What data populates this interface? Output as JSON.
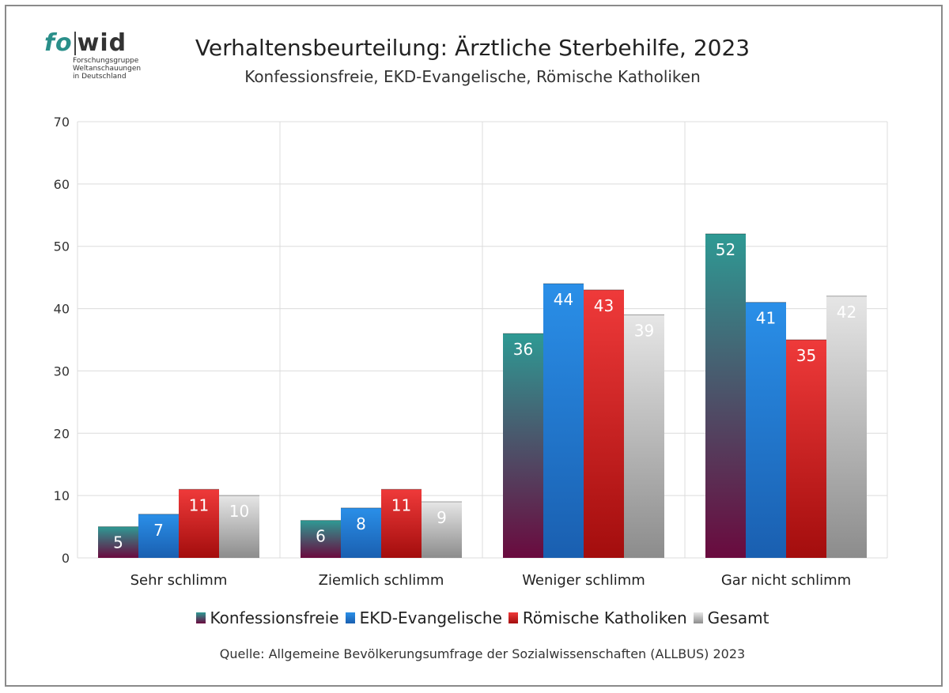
{
  "logo": {
    "fo": "fo",
    "wid": "wid",
    "line1": "Forschungsgruppe",
    "line2": "Weltanschauungen",
    "line3": "in Deutschland"
  },
  "chart_data": {
    "type": "bar",
    "title": "Verhaltensbeurteilung: Ärztliche Sterbehilfe, 2023",
    "subtitle": "Konfessionsfreie, EKD-Evangelische, Römische Katholiken",
    "categories": [
      "Sehr schlimm",
      "Ziemlich schlimm",
      "Weniger schlimm",
      "Gar nicht schlimm"
    ],
    "series": [
      {
        "name": "Konfessionsfreie",
        "values": [
          5,
          6,
          36,
          52
        ],
        "color_top": "#2e9a94",
        "color_bottom": "#6a0a3e"
      },
      {
        "name": "EKD-Evangelische",
        "values": [
          7,
          8,
          44,
          41
        ],
        "color_top": "#2a8fe8",
        "color_bottom": "#1a5fb0"
      },
      {
        "name": "Römische Katholiken",
        "values": [
          11,
          11,
          43,
          35
        ],
        "color_top": "#ef3a3a",
        "color_bottom": "#a30d0d"
      },
      {
        "name": "Gesamt",
        "values": [
          10,
          9,
          39,
          42
        ],
        "color_top": "#e6e6e6",
        "color_bottom": "#8c8c8c"
      }
    ],
    "xlabel": "",
    "ylabel": "",
    "ylim": [
      0,
      70
    ],
    "yticks": [
      0,
      10,
      20,
      30,
      40,
      50,
      60,
      70
    ],
    "grid": true,
    "legend": "bottom",
    "source": "Quelle: Allgemeine Bevölkerungsumfrage der Sozialwissenschaften (ALLBUS) 2023"
  }
}
